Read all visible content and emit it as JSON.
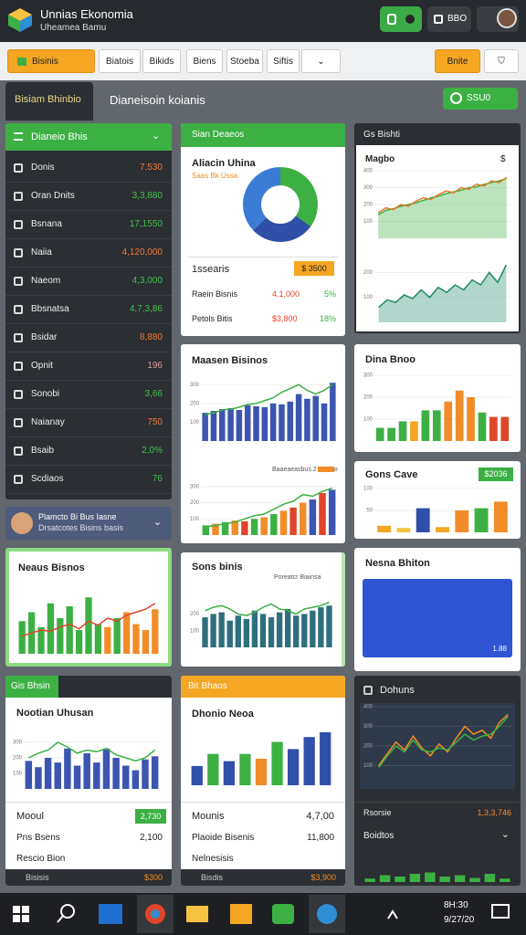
{
  "header": {
    "title": "Unnias Ekonomia",
    "subtitle": "Uheamea Bamu",
    "button": "BBO"
  },
  "toolbar": {
    "dropdown": "Bisinis",
    "items": [
      "Biatois",
      "Bikids",
      "Biens",
      "Stoeba",
      "Siftis"
    ],
    "right": "Bnite"
  },
  "tabs": {
    "active": "Bisiam Bhinbio",
    "title": "Dianeisoin koianis",
    "action": "SSU0"
  },
  "list": {
    "title": "Dianeio Bhis",
    "rows": [
      {
        "label": "Donis",
        "value": "7,530",
        "color": "#f07a3a"
      },
      {
        "label": "Oran Dnits",
        "value": "3,3,880",
        "color": "#43c150"
      },
      {
        "label": "Bsnana",
        "value": "17,1550",
        "color": "#43c150"
      },
      {
        "label": "Naiia",
        "value": "4,120,000",
        "color": "#f07a3a"
      },
      {
        "label": "Naeom",
        "value": "4,3,000",
        "color": "#43c150"
      },
      {
        "label": "Bbsnatsa",
        "value": "4,7,3,86",
        "color": "#43c150"
      },
      {
        "label": "Bsidar",
        "value": "8,880",
        "color": "#f07a3a"
      },
      {
        "label": "Opnit",
        "value": "196",
        "color": "#d8a0a0"
      },
      {
        "label": "Sonobi",
        "value": "3,66",
        "color": "#43c150"
      },
      {
        "label": "Naianay",
        "value": "750",
        "color": "#f07a3a"
      },
      {
        "label": "Bsaib",
        "value": "2,0%",
        "color": "#43c150"
      },
      {
        "label": "Scdiaos",
        "value": "76",
        "color": "#43c150"
      }
    ]
  },
  "profile": {
    "name": "Plamcto Bi Bus Iasne",
    "detail": "Drsatcotes Bisins basis"
  },
  "cards": {
    "neaus": {
      "title": "Neaus Bisnos"
    },
    "sian": {
      "header": "Sian Deaeos",
      "title": "Aliacin Uhina",
      "subtitle": "Saas Bk Ussa",
      "badge_label": "1ssearis",
      "badge": "$ 3500",
      "rows": [
        [
          "Raein Bisnis",
          "4,1,000",
          "5%"
        ],
        [
          "Petols Bitis",
          "$3,800",
          "18%"
        ]
      ]
    },
    "maasen": {
      "title": "Maasen Bisinos",
      "legend": "Baaeaeasbus 2 Bnsiso"
    },
    "sons": {
      "title": "Sons binis",
      "legend": "Poreatcr Biainsa"
    },
    "gis": {
      "header": "Gis Bhsin",
      "title": "Nootian Uhusan",
      "row1": "Mooul",
      "badge": "2,730",
      "row2": "Pns Bsens",
      "row2_value": "2,100",
      "row3": "Rescio Bion",
      "footer": "Bisisis",
      "footer_value": "$300"
    },
    "bit": {
      "header": "Bit Bhaos",
      "title": "Dhonio Neoa",
      "row1": "Mounis",
      "row1_value": "4,7,00",
      "row2": "Plaoide Bisenis",
      "row2_value": "11,800",
      "row3": "Nelnesisis",
      "footer": "Bisdis",
      "footer_value": "$3,900"
    },
    "gs": {
      "header": "Gs Bishti",
      "title": "Magbo",
      "unit": "$"
    },
    "dina": {
      "title": "Dina Bnoo"
    },
    "gons": {
      "title": "Gons Cave",
      "badge": "$2036"
    },
    "nesna": {
      "title": "Nesna Bhiton",
      "value": "1.88"
    },
    "dohuns": {
      "title": "Dohuns",
      "row1": "Rsorsie",
      "row1_value": "1,3,3,746",
      "row2": "Boidtos"
    }
  },
  "taskbar": {
    "time": "8H:30",
    "date": "9/27/20"
  },
  "charts": {
    "donut": {
      "type": "pie",
      "values": [
        35,
        28,
        37
      ],
      "colors": [
        "#3cb043",
        "#2f4fa8",
        "#3a7bd5"
      ]
    },
    "neaus": {
      "type": "bar",
      "ylim": [
        0,
        120
      ],
      "series": [
        {
          "type": "bar",
          "values": [
            55,
            70,
            45,
            85,
            60,
            80,
            40,
            95,
            50,
            45,
            60,
            70,
            50,
            40,
            75
          ],
          "colors": [
            "#3cb043",
            "#3cb043",
            "#3cb043",
            "#3cb043",
            "#3cb043",
            "#3cb043",
            "#3cb043",
            "#3cb043",
            "#3cb043",
            "#f28c28",
            "#3cb043",
            "#f28c28",
            "#f28c28",
            "#f28c28",
            "#f28c28"
          ]
        },
        {
          "type": "line",
          "color": "#e0452a",
          "values": [
            30,
            35,
            40,
            38,
            45,
            50,
            42,
            55,
            48,
            60,
            55,
            65,
            70,
            75,
            85
          ]
        }
      ]
    },
    "maasen_top": {
      "type": "bar",
      "ylim": [
        0,
        350
      ],
      "yticks": [
        100,
        200,
        300
      ],
      "series": [
        {
          "type": "bar",
          "color": "#3b55b0",
          "values": [
            150,
            160,
            170,
            175,
            165,
            190,
            185,
            180,
            200,
            195,
            210,
            250,
            225,
            240,
            200,
            310
          ]
        },
        {
          "type": "line",
          "color": "#3cb043",
          "values": [
            140,
            150,
            165,
            170,
            180,
            195,
            200,
            215,
            230,
            260,
            280,
            300,
            270,
            250,
            270,
            300
          ]
        }
      ]
    },
    "maasen_bottom": {
      "type": "bar",
      "ylim": [
        0,
        350
      ],
      "yticks": [
        100,
        200,
        300
      ],
      "series": [
        {
          "type": "bar",
          "values": [
            60,
            70,
            80,
            90,
            85,
            100,
            110,
            130,
            150,
            170,
            200,
            220,
            260,
            280
          ],
          "colors": [
            "#3cb043",
            "#f28c28",
            "#3cb043",
            "#f28c28",
            "#e0452a",
            "#3cb043",
            "#f28c28",
            "#3cb043",
            "#f28c28",
            "#e0452a",
            "#f28c28",
            "#3b55b0",
            "#e0452a",
            "#3b55b0"
          ]
        },
        {
          "type": "line",
          "color": "#3cb043",
          "values": [
            50,
            60,
            70,
            80,
            100,
            120,
            130,
            160,
            190,
            210,
            250,
            240,
            270,
            290
          ]
        }
      ]
    },
    "sons": {
      "type": "bar",
      "ylim": [
        0,
        350
      ],
      "yticks": [
        100,
        200
      ],
      "series": [
        {
          "type": "bar",
          "color": "#2e6f7e",
          "values": [
            180,
            200,
            210,
            160,
            190,
            170,
            220,
            200,
            180,
            210,
            230,
            190,
            200,
            220,
            240,
            250
          ]
        },
        {
          "type": "line",
          "color": "#3cb043",
          "values": [
            220,
            240,
            250,
            230,
            200,
            190,
            210,
            240,
            260,
            230,
            220,
            200,
            230,
            240,
            250,
            270
          ]
        }
      ]
    },
    "gs_line": {
      "type": "line",
      "ylim": [
        0,
        400
      ],
      "yticks": [
        100,
        200,
        300,
        400
      ],
      "series": [
        {
          "type": "area",
          "color": "#3cb043",
          "values": [
            140,
            165,
            175,
            190,
            200,
            210,
            225,
            240,
            250,
            265,
            275,
            285,
            300,
            305,
            320,
            330,
            340,
            355
          ]
        },
        {
          "type": "line",
          "color": "#e07a2a",
          "values": [
            150,
            180,
            170,
            200,
            190,
            220,
            240,
            230,
            260,
            280,
            270,
            300,
            290,
            320,
            310,
            340,
            330,
            360
          ]
        }
      ]
    },
    "gs_area": {
      "type": "area",
      "ylim": [
        0,
        300
      ],
      "yticks": [
        100,
        200
      ],
      "series": [
        {
          "type": "area",
          "color": "#1f8a6a",
          "values": [
            60,
            90,
            80,
            110,
            95,
            130,
            100,
            140,
            120,
            150,
            130,
            170,
            150,
            200,
            160,
            230
          ]
        }
      ]
    },
    "dina": {
      "type": "bar",
      "ylim": [
        0,
        300
      ],
      "yticks": [
        100,
        200,
        300
      ],
      "series": [
        {
          "type": "bar",
          "values": [
            60,
            60,
            90,
            90,
            140,
            140,
            180,
            230,
            200,
            130,
            110,
            110
          ],
          "colors": [
            "#3cb043",
            "#3cb043",
            "#3cb043",
            "#f5a623",
            "#3cb043",
            "#3cb043",
            "#f28c28",
            "#f28c28",
            "#f28c28",
            "#3cb043",
            "#e0452a",
            "#e0452a"
          ]
        }
      ]
    },
    "gons": {
      "type": "bar",
      "ylim": [
        0,
        100
      ],
      "yticks": [
        50,
        100
      ],
      "series": [
        {
          "type": "bar",
          "values": [
            15,
            10,
            55,
            12,
            50,
            55,
            70
          ],
          "colors": [
            "#f5a623",
            "#f5c242",
            "#2f4fa8",
            "#f5a623",
            "#f28c28",
            "#3cb043",
            "#f28c28"
          ]
        }
      ]
    },
    "nootian": {
      "type": "bar",
      "ylim": [
        0,
        400
      ],
      "yticks": [
        100,
        200,
        300
      ],
      "series": [
        {
          "type": "bar",
          "color": "#3b55b0",
          "values": [
            180,
            140,
            200,
            170,
            260,
            150,
            230,
            170,
            260,
            200,
            150,
            120,
            190,
            210
          ]
        },
        {
          "type": "line",
          "color": "#3cb043",
          "values": [
            200,
            230,
            250,
            300,
            270,
            230,
            250,
            240,
            260,
            220,
            200,
            180,
            200,
            250
          ]
        }
      ]
    },
    "dhonio": {
      "type": "bar",
      "ylim": [
        0,
        250
      ],
      "series": [
        {
          "type": "bar",
          "values": [
            80,
            130,
            100,
            130,
            110,
            180,
            150,
            200,
            220
          ],
          "colors": [
            "#2f4fa8",
            "#3cb043",
            "#2f4fa8",
            "#3cb043",
            "#f28c28",
            "#3cb043",
            "#2f4fa8",
            "#2f4fa8",
            "#2f4fa8"
          ]
        }
      ]
    },
    "dohuns": {
      "type": "line",
      "ylim": [
        0,
        400
      ],
      "yticks": [
        100,
        200,
        300,
        400
      ],
      "series": [
        {
          "type": "line",
          "color": "#f28c28",
          "values": [
            100,
            160,
            220,
            180,
            250,
            190,
            150,
            210,
            170,
            240,
            300,
            260,
            280,
            240,
            320,
            360
          ]
        },
        {
          "type": "line",
          "color": "#3cb043",
          "values": [
            90,
            150,
            200,
            170,
            230,
            180,
            170,
            190,
            180,
            220,
            260,
            230,
            250,
            260,
            300,
            350
          ]
        }
      ]
    },
    "mini": {
      "type": "bar",
      "ylim": [
        0,
        40
      ],
      "series": [
        {
          "type": "bar",
          "color": "#3cb043",
          "values": [
            5,
            10,
            8,
            12,
            14,
            8,
            10,
            6,
            12,
            5
          ]
        }
      ]
    }
  }
}
